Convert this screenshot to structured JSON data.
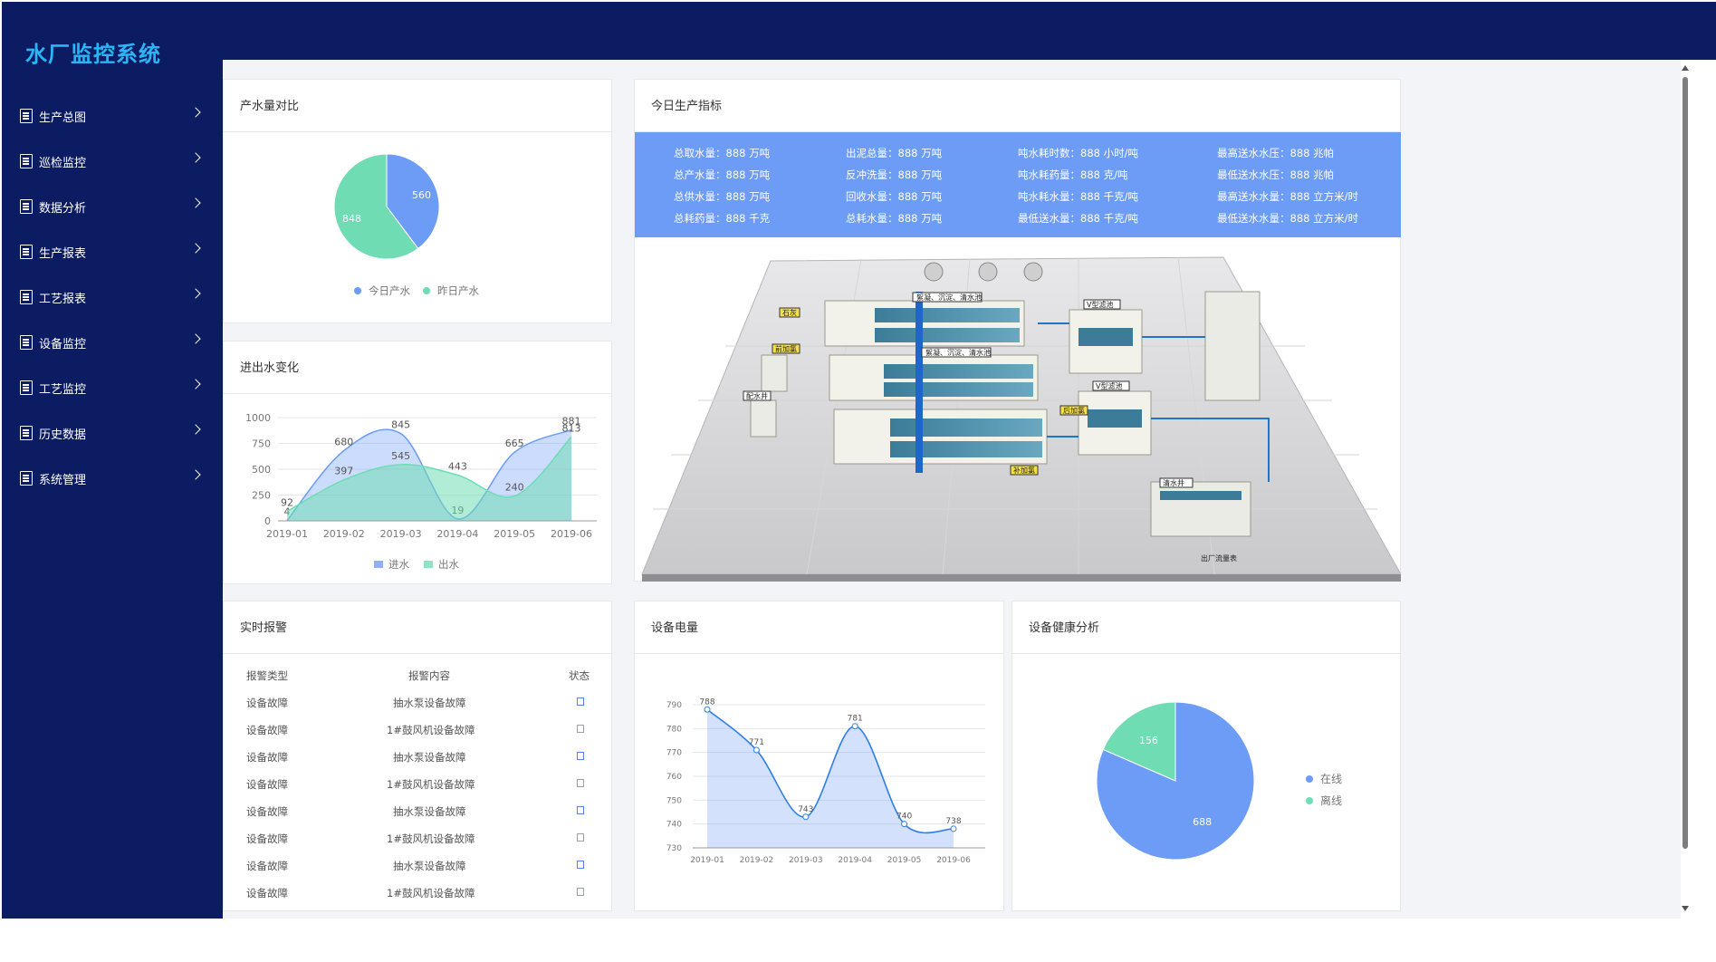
{
  "app": {
    "title": "水厂监控系统"
  },
  "sidebar": {
    "items": [
      {
        "label": "生产总图"
      },
      {
        "label": "巡检监控"
      },
      {
        "label": "数据分析"
      },
      {
        "label": "生产报表"
      },
      {
        "label": "工艺报表"
      },
      {
        "label": "设备监控"
      },
      {
        "label": "工艺监控"
      },
      {
        "label": "历史数据"
      },
      {
        "label": "系统管理"
      }
    ]
  },
  "panels": {
    "water_compare": {
      "title": "产水量对比",
      "legend": [
        "今日产水",
        "昨日产水"
      ]
    },
    "inout": {
      "title": "进出水变化",
      "legend": [
        "进水",
        "出水"
      ]
    },
    "alarm": {
      "title": "实时报警",
      "headers": [
        "报警类型",
        "报警内容",
        "状态"
      ],
      "rows": [
        {
          "type": "设备故障",
          "content": "抽水泵设备故障",
          "status": "blue"
        },
        {
          "type": "设备故障",
          "content": "1#鼓风机设备故障",
          "status": "grey"
        },
        {
          "type": "设备故障",
          "content": "抽水泵设备故障",
          "status": "blue"
        },
        {
          "type": "设备故障",
          "content": "1#鼓风机设备故障",
          "status": "grey"
        },
        {
          "type": "设备故障",
          "content": "抽水泵设备故障",
          "status": "blue"
        },
        {
          "type": "设备故障",
          "content": "1#鼓风机设备故障",
          "status": "grey"
        },
        {
          "type": "设备故障",
          "content": "抽水泵设备故障",
          "status": "blue"
        },
        {
          "type": "设备故障",
          "content": "1#鼓风机设备故障",
          "status": "grey"
        }
      ]
    },
    "indicators": {
      "title": "今日生产指标",
      "items": [
        [
          "总取水量：888 万吨",
          "出泥总量：888 万吨",
          "吨水耗时数：888 小时/吨",
          "最高送水水压：888 兆帕"
        ],
        [
          "总产水量：888 万吨",
          "反冲洗量：888 万吨",
          "吨水耗药量：888 克/吨",
          "最低送水水压：888 兆帕"
        ],
        [
          "总供水量：888 万吨",
          "回收水量：888 万吨",
          "吨水耗水量：888 千克/吨",
          "最高送水水量：888 立方米/时"
        ],
        [
          "总耗药量：888 千克",
          "总耗水量：888 万吨",
          "最低送水量：888 千克/吨",
          "最低送水水量：888 立方米/时"
        ]
      ]
    },
    "power": {
      "title": "设备电量"
    },
    "health": {
      "title": "设备健康分析",
      "legend": [
        "在线",
        "离线"
      ]
    }
  },
  "plant_labels": {
    "mixing": "絮凝、沉淀、清水池",
    "settling": "絮凝、沉淀、清水池",
    "v_filter_1": "V型滤池",
    "v_filter_2": "V型滤池",
    "post_chlorine": "后加氯",
    "tag_pre_chlorine": "前加氯",
    "tag_add_chlorine": "补加氯",
    "tag_lime": "石灰",
    "tag_pool": "配水井",
    "tag_intake": "出厂流量表",
    "tag_clear": "清水井"
  },
  "colors": {
    "navy": "#0c1c62",
    "blue": "#6d9cf6",
    "green": "#6fdcb4",
    "accent": "#29b6f6"
  },
  "chart_data": [
    {
      "type": "pie",
      "labels": [
        "今日产水",
        "昨日产水"
      ],
      "values": [
        560,
        848
      ],
      "colors": [
        "#6d9cf6",
        "#6fdcb4"
      ],
      "legend": "bottom"
    },
    {
      "type": "area",
      "categories": [
        "2019-01",
        "2019-02",
        "2019-03",
        "2019-04",
        "2019-05",
        "2019-06"
      ],
      "series": [
        {
          "name": "进水",
          "values": [
            4,
            680,
            845,
            19,
            665,
            881
          ]
        },
        {
          "name": "出水",
          "values": [
            92,
            397,
            545,
            443,
            240,
            813
          ]
        }
      ],
      "ylim": [
        0,
        1000
      ],
      "yticks": [
        0,
        250,
        500,
        750,
        1000
      ],
      "legend": "bottom"
    },
    {
      "type": "area",
      "categories": [
        "2019-01",
        "2019-02",
        "2019-03",
        "2019-04",
        "2019-05",
        "2019-06"
      ],
      "values": [
        788,
        771,
        743,
        781,
        740,
        738
      ],
      "ylim": [
        730,
        790
      ],
      "yticks": [
        730,
        740,
        750,
        760,
        770,
        780,
        790
      ]
    },
    {
      "type": "pie",
      "labels": [
        "在线",
        "离线"
      ],
      "values": [
        688,
        156
      ],
      "colors": [
        "#6d9cf6",
        "#6fdcb4"
      ],
      "legend": "right"
    }
  ]
}
